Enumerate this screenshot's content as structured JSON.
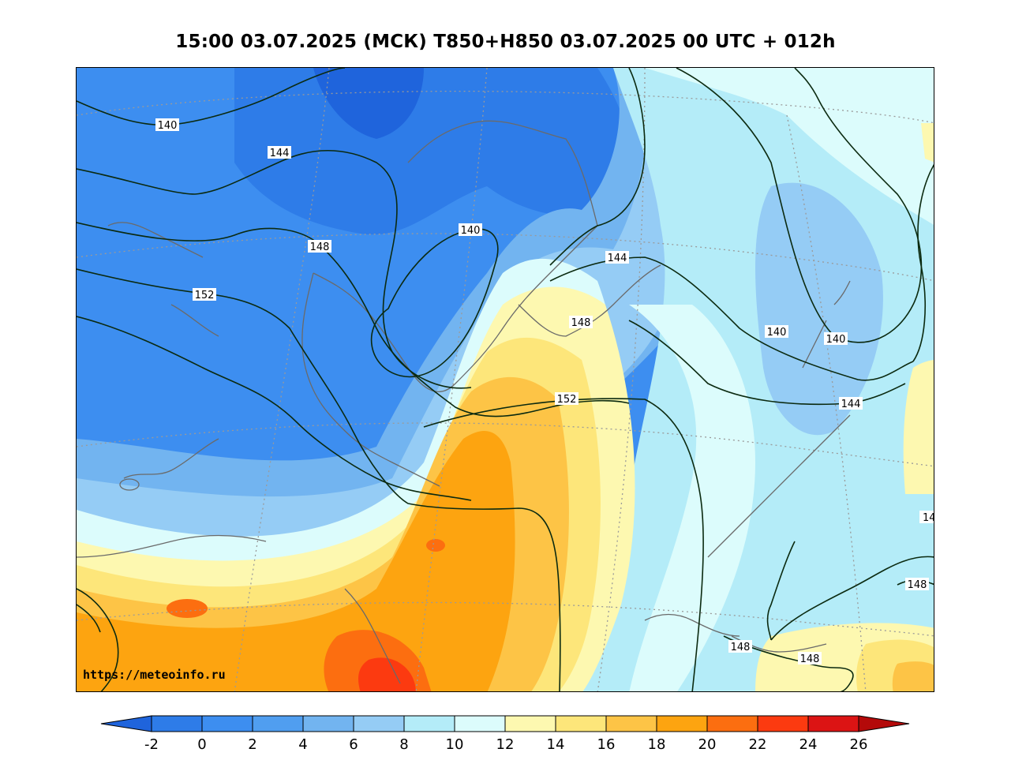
{
  "header": {
    "title": "15:00 03.07.2025 (МСК) T850+H850 03.07.2025 00 UTC + 012h"
  },
  "map": {
    "source_label": "https://meteoinfo.ru",
    "isoline_labels": [
      "140",
      "144",
      "148",
      "152",
      "140",
      "144",
      "148",
      "152",
      "140",
      "140",
      "144",
      "14",
      "148",
      "148",
      "148"
    ]
  },
  "colorbar": {
    "ticks": [
      "-2",
      "0",
      "2",
      "4",
      "6",
      "8",
      "10",
      "12",
      "14",
      "16",
      "18",
      "20",
      "22",
      "24",
      "26"
    ],
    "colors": [
      "#1f64dc",
      "#2e7ce8",
      "#3d8ef0",
      "#509ef0",
      "#72b4f0",
      "#95ccf5",
      "#b4ecf8",
      "#dcfcfc",
      "#fdf8b0",
      "#fde67a",
      "#fdc446",
      "#fda410",
      "#fc6e10",
      "#fc3a10",
      "#dc1414",
      "#b40a0a"
    ]
  }
}
